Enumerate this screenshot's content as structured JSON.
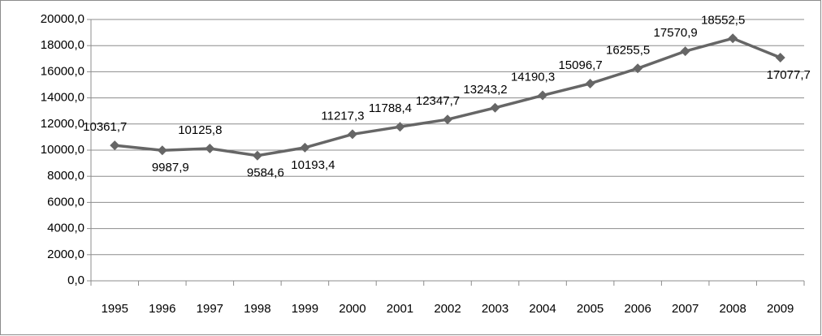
{
  "chart_data": {
    "type": "line",
    "categories": [
      "1995",
      "1996",
      "1997",
      "1998",
      "1999",
      "2000",
      "2001",
      "2002",
      "2003",
      "2004",
      "2005",
      "2006",
      "2007",
      "2008",
      "2009"
    ],
    "values": [
      10361.7,
      9987.9,
      10125.8,
      9584.6,
      10193.4,
      11217.3,
      11788.4,
      12347.7,
      13243.2,
      14190.3,
      15096.7,
      16255.5,
      17570.9,
      18552.5,
      17077.7
    ],
    "value_labels": [
      "10361,7",
      "9987,9",
      "10125,8",
      "9584,6",
      "10193,4",
      "11217,3",
      "11788,4",
      "12347,7",
      "13243,2",
      "14190,3",
      "15096,7",
      "16255,5",
      "17570,9",
      "18552,5",
      "17077,7"
    ],
    "color": "#666666",
    "ylim": [
      0,
      20000
    ],
    "yticks": [
      {
        "value": 0,
        "label": "0,0"
      },
      {
        "value": 2000,
        "label": "2000,0"
      },
      {
        "value": 4000,
        "label": "4000,0"
      },
      {
        "value": 6000,
        "label": "6000,0"
      },
      {
        "value": 8000,
        "label": "8000,0"
      },
      {
        "value": 10000,
        "label": "10000,0"
      },
      {
        "value": 12000,
        "label": "12000,0"
      },
      {
        "value": 14000,
        "label": "14000,0"
      },
      {
        "value": 16000,
        "label": "16000,0"
      },
      {
        "value": 18000,
        "label": "18000,0"
      },
      {
        "value": 20000,
        "label": "20000,0"
      }
    ],
    "grid": true
  }
}
